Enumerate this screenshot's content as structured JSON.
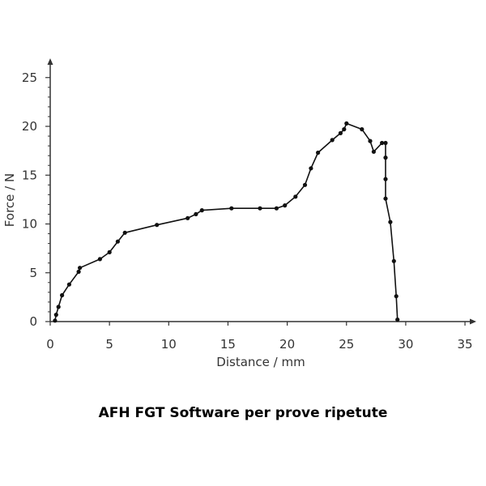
{
  "chart_data": {
    "type": "line",
    "title": "",
    "xlabel": "Distance / mm",
    "ylabel": "Force / N",
    "xlim": [
      0,
      36
    ],
    "ylim": [
      0,
      26
    ],
    "xticks": [
      "0",
      "5",
      "10",
      "15",
      "20",
      "25",
      "30",
      "35"
    ],
    "yticks": [
      "0",
      "5",
      "10",
      "15",
      "20",
      "25"
    ],
    "grid": false,
    "legend": "none",
    "colors": {
      "line": "#111111",
      "axis": "#333333"
    },
    "series": [
      {
        "x": [
          0.4,
          0.5,
          0.7,
          1.0,
          1.6,
          2.4,
          2.5,
          4.2,
          5.0,
          5.7,
          6.3,
          9.0,
          11.6,
          12.3,
          12.8,
          15.3,
          17.7,
          19.1,
          19.8,
          20.7,
          21.5,
          22.0,
          22.6,
          23.8,
          24.5,
          24.8,
          25.0,
          26.3,
          27.0,
          27.3,
          28.0,
          28.3,
          28.3,
          28.3,
          28.3,
          28.7,
          29.0,
          29.2,
          29.3
        ],
        "y": [
          0.1,
          0.7,
          1.5,
          2.7,
          3.8,
          5.1,
          5.5,
          6.4,
          7.1,
          8.2,
          9.1,
          9.9,
          10.6,
          11.0,
          11.4,
          11.6,
          11.6,
          11.6,
          11.9,
          12.8,
          14.0,
          15.7,
          17.3,
          18.6,
          19.3,
          19.7,
          20.3,
          19.7,
          18.5,
          17.4,
          18.3,
          18.3,
          16.8,
          14.6,
          12.6,
          10.2,
          6.2,
          2.6,
          0.2
        ]
      }
    ]
  },
  "caption": "AFH FGT Software per prove ripetute"
}
